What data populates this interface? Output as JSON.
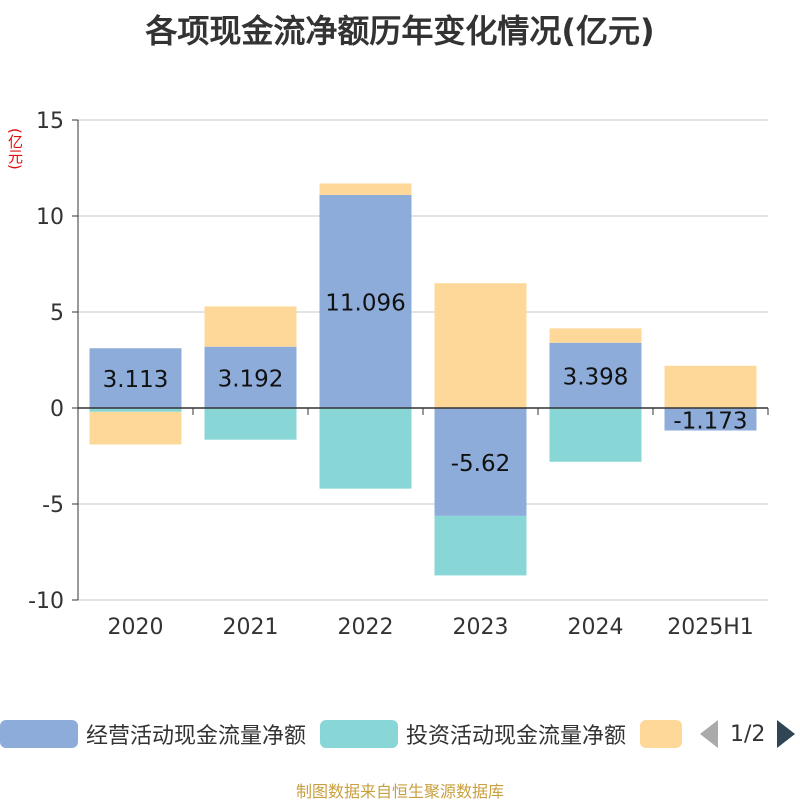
{
  "title": "各项现金流净额历年变化情况(亿元)",
  "unit_label": "(亿元)",
  "source": "制图数据来自恒生聚源数据库",
  "legend": {
    "items": [
      {
        "label": "经营活动现金流量净额",
        "color": "#8eacd9"
      },
      {
        "label": "投资活动现金流量净额",
        "color": "#88d6d6"
      },
      {
        "label": "",
        "color": "#fdd899"
      }
    ],
    "pager": "1/2"
  },
  "chart_data": {
    "type": "bar",
    "stacked": true,
    "categories": [
      "2020",
      "2021",
      "2022",
      "2023",
      "2024",
      "2025H1"
    ],
    "ylim": [
      -10,
      15
    ],
    "yticks": [
      15,
      10,
      5,
      0,
      -5,
      -10
    ],
    "grid": true,
    "series": [
      {
        "name": "经营活动现金流量净额",
        "color": "#8eacd9",
        "values": [
          3.113,
          3.192,
          11.096,
          -5.62,
          3.398,
          -1.173
        ],
        "labels": [
          "3.113",
          "3.192",
          "11.096",
          "-5.62",
          "3.398",
          "-1.173"
        ]
      },
      {
        "name": "投资活动现金流量净额",
        "color": "#88d6d6",
        "values": [
          -0.2,
          -1.65,
          -4.2,
          -3.1,
          -2.8,
          0
        ]
      },
      {
        "name": "",
        "color": "#fdd899",
        "values": [
          -1.7,
          2.1,
          0.6,
          6.5,
          0.75,
          2.2
        ]
      }
    ]
  }
}
